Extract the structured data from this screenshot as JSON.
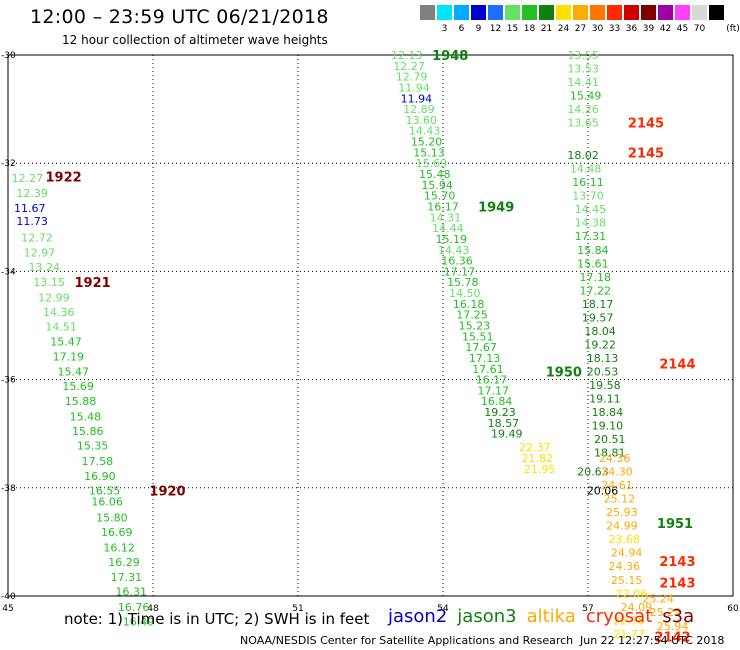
{
  "title": "12:00 – 23:59 UTC 06/21/2018",
  "subtitle": "12 hour collection of altimeter wave heights",
  "colorbar": {
    "unit": "(ft)",
    "colors": [
      "#7f7f7f",
      "#00e5ff",
      "#00aaff",
      "#0000cc",
      "#1e6fff",
      "#66e066",
      "#22c022",
      "#108010",
      "#ffe000",
      "#ffaa00",
      "#ff7700",
      "#ff2a00",
      "#cc0000",
      "#800000",
      "#a000a0",
      "#ff40ff",
      "#d8d8d8",
      "#000000"
    ],
    "labels": [
      "",
      "3",
      "6",
      "9",
      "12",
      "15",
      "18",
      "21",
      "24",
      "27",
      "30",
      "33",
      "36",
      "39",
      "42",
      "45",
      "70",
      ""
    ]
  },
  "chart_data": {
    "type": "scatter",
    "title": "12:00 – 23:59 UTC 06/21/2018",
    "subtitle": "12 hour collection of altimeter wave heights",
    "xlim": [
      45,
      60
    ],
    "ylim": [
      -40,
      -30
    ],
    "x_ticks": [
      45,
      48,
      51,
      54,
      57,
      60
    ],
    "y_ticks": [
      -30,
      -32,
      -34,
      -36,
      -38,
      -40
    ],
    "y_tick_labels": [
      "-30",
      "-32",
      "-34",
      "-36",
      "-38",
      "-40"
    ],
    "grid": true,
    "legend_position": "bottom",
    "series": [
      {
        "name": "jason2",
        "color": "#0000cc"
      },
      {
        "name": "jason3",
        "color": "#108010"
      },
      {
        "name": "altika",
        "color": "#ffaa00"
      },
      {
        "name": "cryosat",
        "color": "#ff2a00"
      },
      {
        "name": "s3a",
        "color": "#800000"
      }
    ],
    "points": [
      {
        "x": 45.4,
        "y": -32.27,
        "v": "12.27",
        "c": "#66e066"
      },
      {
        "x": 45.5,
        "y": -32.55,
        "v": "12.39",
        "c": "#66e066"
      },
      {
        "x": 45.45,
        "y": -32.83,
        "v": "11.67",
        "c": "#0000cc"
      },
      {
        "x": 45.5,
        "y": -33.07,
        "v": "11.73",
        "c": "#0000cc"
      },
      {
        "x": 45.6,
        "y": -33.37,
        "v": "12.72",
        "c": "#66e066"
      },
      {
        "x": 45.65,
        "y": -33.65,
        "v": "12.97",
        "c": "#66e066"
      },
      {
        "x": 45.75,
        "y": -33.92,
        "v": "13.24",
        "c": "#66e066"
      },
      {
        "x": 45.85,
        "y": -34.2,
        "v": "13.15",
        "c": "#66e066"
      },
      {
        "x": 45.95,
        "y": -34.48,
        "v": "12.99",
        "c": "#66e066"
      },
      {
        "x": 46.05,
        "y": -34.75,
        "v": "14.36",
        "c": "#66e066"
      },
      {
        "x": 46.1,
        "y": -35.02,
        "v": "14.51",
        "c": "#66e066"
      },
      {
        "x": 46.2,
        "y": -35.3,
        "v": "15.47",
        "c": "#22c022"
      },
      {
        "x": 46.25,
        "y": -35.57,
        "v": "17.19",
        "c": "#22c022"
      },
      {
        "x": 46.35,
        "y": -35.85,
        "v": "15.47",
        "c": "#22c022"
      },
      {
        "x": 46.45,
        "y": -36.12,
        "v": "15.69",
        "c": "#22c022"
      },
      {
        "x": 46.5,
        "y": -36.4,
        "v": "15.88",
        "c": "#22c022"
      },
      {
        "x": 46.6,
        "y": -36.68,
        "v": "15.48",
        "c": "#22c022"
      },
      {
        "x": 46.65,
        "y": -36.95,
        "v": "15.86",
        "c": "#22c022"
      },
      {
        "x": 46.75,
        "y": -37.22,
        "v": "15.35",
        "c": "#22c022"
      },
      {
        "x": 46.85,
        "y": -37.5,
        "v": "17.58",
        "c": "#22c022"
      },
      {
        "x": 46.9,
        "y": -37.78,
        "v": "16.90",
        "c": "#22c022"
      },
      {
        "x": 47.0,
        "y": -38.05,
        "v": "16.55",
        "c": "#22c022"
      },
      {
        "x": 47.05,
        "y": -38.25,
        "v": "16.06",
        "c": "#22c022"
      },
      {
        "x": 47.15,
        "y": -38.55,
        "v": "15.80",
        "c": "#22c022"
      },
      {
        "x": 47.25,
        "y": -38.82,
        "v": "16.69",
        "c": "#22c022"
      },
      {
        "x": 47.3,
        "y": -39.1,
        "v": "16.12",
        "c": "#22c022"
      },
      {
        "x": 47.4,
        "y": -39.37,
        "v": "16.29",
        "c": "#22c022"
      },
      {
        "x": 47.45,
        "y": -39.65,
        "v": "17.31",
        "c": "#22c022"
      },
      {
        "x": 47.55,
        "y": -39.92,
        "v": "16.31",
        "c": "#22c022"
      },
      {
        "x": 47.6,
        "y": -40.2,
        "v": "16.76",
        "c": "#22c022"
      },
      {
        "x": 47.7,
        "y": -40.47,
        "v": "16.49",
        "c": "#22c022"
      },
      {
        "x": 53.25,
        "y": -30.0,
        "v": "12.13",
        "c": "#66e066"
      },
      {
        "x": 53.3,
        "y": -30.2,
        "v": "12.27",
        "c": "#66e066"
      },
      {
        "x": 53.35,
        "y": -30.4,
        "v": "12.79",
        "c": "#66e066"
      },
      {
        "x": 53.4,
        "y": -30.6,
        "v": "11.94",
        "c": "#66e066"
      },
      {
        "x": 53.45,
        "y": -30.8,
        "v": "11.94",
        "c": "#0000cc"
      },
      {
        "x": 53.5,
        "y": -31.0,
        "v": "12.89",
        "c": "#66e066"
      },
      {
        "x": 53.55,
        "y": -31.2,
        "v": "13.60",
        "c": "#66e066"
      },
      {
        "x": 53.62,
        "y": -31.4,
        "v": "14.43",
        "c": "#66e066"
      },
      {
        "x": 53.66,
        "y": -31.6,
        "v": "15.20",
        "c": "#22c022"
      },
      {
        "x": 53.71,
        "y": -31.8,
        "v": "15.13",
        "c": "#22c022"
      },
      {
        "x": 53.76,
        "y": -32.0,
        "v": "15.69",
        "c": "#66e066"
      },
      {
        "x": 53.83,
        "y": -32.2,
        "v": "15.48",
        "c": "#22c022"
      },
      {
        "x": 53.88,
        "y": -32.4,
        "v": "15.94",
        "c": "#22c022"
      },
      {
        "x": 53.93,
        "y": -32.6,
        "v": "15.70",
        "c": "#22c022"
      },
      {
        "x": 54.0,
        "y": -32.8,
        "v": "16.17",
        "c": "#22c022"
      },
      {
        "x": 54.05,
        "y": -33.0,
        "v": "14.31",
        "c": "#66e066"
      },
      {
        "x": 54.1,
        "y": -33.2,
        "v": "14.44",
        "c": "#66e066"
      },
      {
        "x": 54.17,
        "y": -33.4,
        "v": "15.19",
        "c": "#22c022"
      },
      {
        "x": 54.22,
        "y": -33.6,
        "v": "14.43",
        "c": "#66e066"
      },
      {
        "x": 54.29,
        "y": -33.8,
        "v": "16.36",
        "c": "#22c022"
      },
      {
        "x": 54.34,
        "y": -34.0,
        "v": "17.17",
        "c": "#22c022"
      },
      {
        "x": 54.41,
        "y": -34.2,
        "v": "15.78",
        "c": "#22c022"
      },
      {
        "x": 54.45,
        "y": -34.4,
        "v": "14.50",
        "c": "#66e066"
      },
      {
        "x": 54.53,
        "y": -34.6,
        "v": "16.18",
        "c": "#22c022"
      },
      {
        "x": 54.6,
        "y": -34.8,
        "v": "17.25",
        "c": "#22c022"
      },
      {
        "x": 54.65,
        "y": -35.0,
        "v": "15.23",
        "c": "#22c022"
      },
      {
        "x": 54.72,
        "y": -35.2,
        "v": "15.51",
        "c": "#22c022"
      },
      {
        "x": 54.79,
        "y": -35.4,
        "v": "17.67",
        "c": "#22c022"
      },
      {
        "x": 54.86,
        "y": -35.6,
        "v": "17.13",
        "c": "#22c022"
      },
      {
        "x": 54.93,
        "y": -35.8,
        "v": "17.61",
        "c": "#22c022"
      },
      {
        "x": 55.0,
        "y": -36.0,
        "v": "16.17",
        "c": "#22c022"
      },
      {
        "x": 55.04,
        "y": -36.2,
        "v": "17.17",
        "c": "#22c022"
      },
      {
        "x": 55.11,
        "y": -36.4,
        "v": "16.84",
        "c": "#22c022"
      },
      {
        "x": 55.18,
        "y": -36.6,
        "v": "19.23",
        "c": "#108010"
      },
      {
        "x": 55.25,
        "y": -36.8,
        "v": "18.57",
        "c": "#108010"
      },
      {
        "x": 55.32,
        "y": -37.0,
        "v": "19.49",
        "c": "#108010"
      },
      {
        "x": 56.9,
        "y": -30.0,
        "v": "13.55",
        "c": "#66e066"
      },
      {
        "x": 56.9,
        "y": -30.25,
        "v": "13.53",
        "c": "#66e066"
      },
      {
        "x": 56.9,
        "y": -30.5,
        "v": "14.41",
        "c": "#66e066"
      },
      {
        "x": 56.95,
        "y": -30.75,
        "v": "15.49",
        "c": "#22c022"
      },
      {
        "x": 56.9,
        "y": -31.0,
        "v": "14.26",
        "c": "#66e066"
      },
      {
        "x": 56.9,
        "y": -31.25,
        "v": "13.65",
        "c": "#66e066"
      },
      {
        "x": 56.9,
        "y": -31.85,
        "v": "18.02",
        "c": "#108010"
      },
      {
        "x": 56.95,
        "y": -32.1,
        "v": "14.48",
        "c": "#66e066"
      },
      {
        "x": 57.0,
        "y": -32.35,
        "v": "16.11",
        "c": "#22c022"
      },
      {
        "x": 57.0,
        "y": -32.6,
        "v": "13.70",
        "c": "#66e066"
      },
      {
        "x": 57.05,
        "y": -32.85,
        "v": "14.45",
        "c": "#66e066"
      },
      {
        "x": 57.05,
        "y": -33.1,
        "v": "14.38",
        "c": "#66e066"
      },
      {
        "x": 57.05,
        "y": -33.35,
        "v": "17.31",
        "c": "#22c022"
      },
      {
        "x": 57.1,
        "y": -33.6,
        "v": "15.84",
        "c": "#22c022"
      },
      {
        "x": 57.1,
        "y": -33.85,
        "v": "15.61",
        "c": "#22c022"
      },
      {
        "x": 57.15,
        "y": -34.1,
        "v": "17.18",
        "c": "#22c022"
      },
      {
        "x": 57.15,
        "y": -34.35,
        "v": "17.22",
        "c": "#22c022"
      },
      {
        "x": 57.2,
        "y": -34.6,
        "v": "18.17",
        "c": "#108010"
      },
      {
        "x": 57.2,
        "y": -34.85,
        "v": "19.57",
        "c": "#108010"
      },
      {
        "x": 57.25,
        "y": -35.1,
        "v": "18.04",
        "c": "#108010"
      },
      {
        "x": 57.25,
        "y": -35.35,
        "v": "19.22",
        "c": "#108010"
      },
      {
        "x": 57.3,
        "y": -35.6,
        "v": "18.13",
        "c": "#108010"
      },
      {
        "x": 57.3,
        "y": -35.85,
        "v": "20.53",
        "c": "#108010"
      },
      {
        "x": 57.35,
        "y": -36.1,
        "v": "19.58",
        "c": "#108010"
      },
      {
        "x": 57.35,
        "y": -36.35,
        "v": "19.11",
        "c": "#108010"
      },
      {
        "x": 57.4,
        "y": -36.6,
        "v": "18.84",
        "c": "#108010"
      },
      {
        "x": 57.4,
        "y": -36.85,
        "v": "19.10",
        "c": "#108010"
      },
      {
        "x": 57.45,
        "y": -37.1,
        "v": "20.51",
        "c": "#108010"
      },
      {
        "x": 57.45,
        "y": -37.35,
        "v": "18.81",
        "c": "#108010"
      },
      {
        "x": 57.1,
        "y": -37.7,
        "v": "20.63",
        "c": "#108010"
      },
      {
        "x": 57.3,
        "y": -38.05,
        "v": "20.06",
        "c": "#000000"
      },
      {
        "x": 55.9,
        "y": -37.25,
        "v": "22.37",
        "c": "#ffe000"
      },
      {
        "x": 55.95,
        "y": -37.45,
        "v": "21.82",
        "c": "#ffe000"
      },
      {
        "x": 56.0,
        "y": -37.65,
        "v": "21.95",
        "c": "#ffe000"
      },
      {
        "x": 57.55,
        "y": -37.45,
        "v": "24.36",
        "c": "#ffaa00"
      },
      {
        "x": 57.6,
        "y": -37.7,
        "v": "24.30",
        "c": "#ffaa00"
      },
      {
        "x": 57.6,
        "y": -37.95,
        "v": "24.61",
        "c": "#ffaa00"
      },
      {
        "x": 57.65,
        "y": -38.2,
        "v": "25.12",
        "c": "#ffaa00"
      },
      {
        "x": 57.7,
        "y": -38.45,
        "v": "25.93",
        "c": "#ffaa00"
      },
      {
        "x": 57.7,
        "y": -38.7,
        "v": "24.99",
        "c": "#ffaa00"
      },
      {
        "x": 57.75,
        "y": -38.95,
        "v": "23.68",
        "c": "#ffe000"
      },
      {
        "x": 57.8,
        "y": -39.2,
        "v": "24.94",
        "c": "#ffaa00"
      },
      {
        "x": 57.75,
        "y": -39.45,
        "v": "24.36",
        "c": "#ffaa00"
      },
      {
        "x": 57.8,
        "y": -39.7,
        "v": "25.15",
        "c": "#ffaa00"
      },
      {
        "x": 57.9,
        "y": -39.95,
        "v": "22.06",
        "c": "#ffe000"
      },
      {
        "x": 58.0,
        "y": -40.2,
        "v": "24.09",
        "c": "#ffaa00"
      },
      {
        "x": 57.85,
        "y": -40.45,
        "v": "22.76",
        "c": "#ffe000"
      },
      {
        "x": 57.85,
        "y": -40.7,
        "v": "21.77",
        "c": "#ffe000"
      },
      {
        "x": 58.45,
        "y": -40.05,
        "v": "25.24",
        "c": "#ffaa00"
      },
      {
        "x": 58.6,
        "y": -40.3,
        "v": "25.22",
        "c": "#ffaa00"
      },
      {
        "x": 58.75,
        "y": -40.55,
        "v": "25.94",
        "c": "#ffaa00"
      }
    ],
    "track_labels": [
      {
        "x": 46.15,
        "y": -32.25,
        "v": "1922",
        "c": "#800000"
      },
      {
        "x": 46.75,
        "y": -34.2,
        "v": "1921",
        "c": "#800000"
      },
      {
        "x": 48.3,
        "y": -38.05,
        "v": "1920",
        "c": "#800000"
      },
      {
        "x": 54.15,
        "y": -30.0,
        "v": "1948",
        "c": "#108010"
      },
      {
        "x": 55.1,
        "y": -32.8,
        "v": "1949",
        "c": "#108010"
      },
      {
        "x": 56.5,
        "y": -35.85,
        "v": "1950",
        "c": "#108010"
      },
      {
        "x": 58.8,
        "y": -38.65,
        "v": "1951",
        "c": "#108010"
      },
      {
        "x": 58.2,
        "y": -31.25,
        "v": "2145",
        "c": "#ff2a00"
      },
      {
        "x": 58.2,
        "y": -31.8,
        "v": "2145",
        "c": "#ff2a00"
      },
      {
        "x": 58.85,
        "y": -35.7,
        "v": "2144",
        "c": "#ff2a00"
      },
      {
        "x": 58.85,
        "y": -39.35,
        "v": "2143",
        "c": "#ff2a00"
      },
      {
        "x": 58.85,
        "y": -39.75,
        "v": "2143",
        "c": "#ff2a00"
      },
      {
        "x": 58.75,
        "y": -40.75,
        "v": "2142",
        "c": "#ff2a00"
      }
    ]
  },
  "footer": {
    "note": "note:  1) Time is in UTC;  2) SWH is in feet",
    "legend": [
      {
        "name": "jason2",
        "color": "#0000cc"
      },
      {
        "name": "jason3",
        "color": "#108010"
      },
      {
        "name": "altika",
        "color": "#ffaa00"
      },
      {
        "name": "cryosat",
        "color": "#ff2a00"
      },
      {
        "name": "s3a",
        "color": "#800000"
      }
    ],
    "credit": "NOAA/NESDIS Center for Satellite Applications and Research",
    "timestamp": "Jun 22 12:27:54 UTC 2018"
  }
}
